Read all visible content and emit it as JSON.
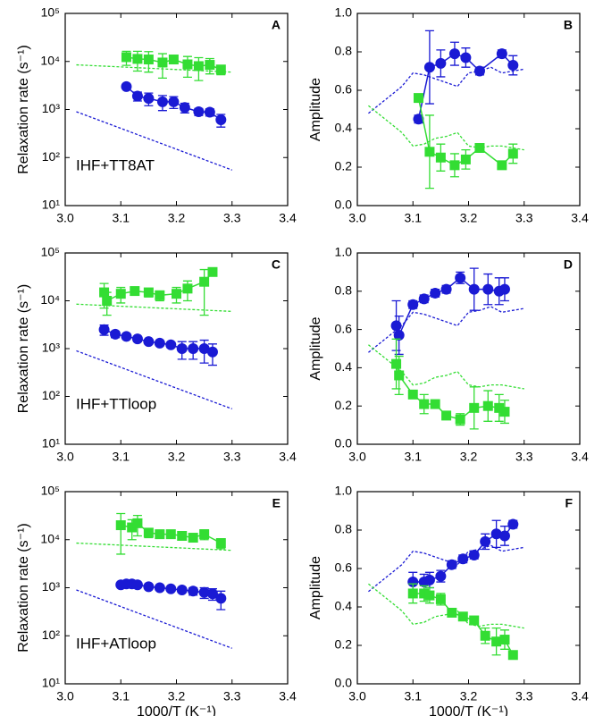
{
  "chart_data": [
    {
      "type": "scatter",
      "panel_label": "A",
      "annotation": "IHF+TT8AT",
      "ylabel": "Relaxation rate (s⁻¹)",
      "log_y": true,
      "xlim": [
        3.0,
        3.4
      ],
      "xticks": [
        {
          "value": 3.0,
          "label": "3.0"
        },
        3.1,
        3.2,
        3.3,
        3.4
      ],
      "ylim": [
        10,
        100000
      ],
      "yticks": [
        {
          "value": 10,
          "label": "10¹"
        },
        {
          "value": 100,
          "label": "10²"
        },
        {
          "value": 1000,
          "label": "10³"
        },
        {
          "value": 10000,
          "label": "10⁴"
        },
        {
          "value": 100000,
          "label": "10⁵"
        }
      ],
      "series": [
        {
          "color": "#1a1ad4",
          "marker": "circle",
          "x": [
            3.11,
            3.13,
            3.15,
            3.175,
            3.195,
            3.215,
            3.24,
            3.26,
            3.28
          ],
          "values": [
            3000,
            1900,
            1700,
            1450,
            1450,
            1100,
            900,
            880,
            610
          ],
          "errors": [
            300,
            400,
            500,
            500,
            400,
            250,
            150,
            150,
            180
          ]
        },
        {
          "color": "#33dd33",
          "marker": "square",
          "x": [
            3.11,
            3.13,
            3.15,
            3.175,
            3.195,
            3.22,
            3.24,
            3.26,
            3.28
          ],
          "values": [
            12300,
            11300,
            11000,
            9500,
            11000,
            8700,
            8000,
            8500,
            6800
          ],
          "errors": [
            4000,
            5000,
            5000,
            5000,
            14000,
            4000,
            4000,
            3000,
            1500
          ]
        },
        {
          "color": "#33dd33",
          "marker": "none",
          "x": [
            3.02,
            3.3
          ],
          "values": [
            8500,
            6000
          ]
        },
        {
          "color": "#1a1ad4",
          "marker": "none",
          "x": [
            3.02,
            3.3
          ],
          "values": [
            900,
            55
          ]
        }
      ]
    },
    {
      "type": "scatter",
      "panel_label": "B",
      "ylabel": "Amplitude",
      "xlim": [
        3.0,
        3.4
      ],
      "xticks": [
        {
          "value": 3.0,
          "label": "3.0"
        },
        3.1,
        3.2,
        3.3,
        3.4
      ],
      "ylim": [
        0,
        1
      ],
      "yticks": [
        {
          "value": 0,
          "label": "0.0"
        },
        0.2,
        0.4,
        0.6,
        0.8,
        {
          "value": 1,
          "label": "1.0"
        }
      ],
      "series": [
        {
          "color": "#1a1ad4",
          "marker": "circle",
          "x": [
            3.11,
            3.13,
            3.15,
            3.175,
            3.195,
            3.22,
            3.26,
            3.28
          ],
          "values": [
            0.45,
            0.72,
            0.74,
            0.79,
            0.77,
            0.7,
            0.79,
            0.73
          ],
          "errors": [
            0.02,
            0.19,
            0.07,
            0.06,
            0.05,
            0.02,
            0.02,
            0.05
          ]
        },
        {
          "color": "#33dd33",
          "marker": "square",
          "x": [
            3.11,
            3.13,
            3.15,
            3.175,
            3.195,
            3.22,
            3.26,
            3.28
          ],
          "values": [
            0.56,
            0.28,
            0.25,
            0.21,
            0.24,
            0.3,
            0.21,
            0.27
          ],
          "errors": [
            0.02,
            0.19,
            0.07,
            0.06,
            0.05,
            0.02,
            0.02,
            0.05
          ]
        },
        {
          "color": "#1a1ad4",
          "marker": "none",
          "x": [
            3.02,
            3.05,
            3.08,
            3.1,
            3.12,
            3.14,
            3.16,
            3.18,
            3.2,
            3.22,
            3.24,
            3.26,
            3.28,
            3.3
          ],
          "values": [
            0.48,
            0.55,
            0.62,
            0.69,
            0.68,
            0.66,
            0.64,
            0.62,
            0.69,
            0.7,
            0.72,
            0.69,
            0.7,
            0.71
          ]
        },
        {
          "color": "#33dd33",
          "marker": "none",
          "x": [
            3.02,
            3.05,
            3.08,
            3.1,
            3.12,
            3.14,
            3.16,
            3.18,
            3.2,
            3.22,
            3.24,
            3.26,
            3.28,
            3.3
          ],
          "values": [
            0.52,
            0.45,
            0.38,
            0.31,
            0.32,
            0.35,
            0.36,
            0.38,
            0.31,
            0.3,
            0.31,
            0.31,
            0.3,
            0.29
          ]
        }
      ]
    },
    {
      "type": "scatter",
      "panel_label": "C",
      "annotation": "IHF+TTloop",
      "ylabel": "Relaxation rate (s⁻¹)",
      "log_y": true,
      "xlim": [
        3.0,
        3.4
      ],
      "xticks": [
        {
          "value": 3.0,
          "label": "3.0"
        },
        3.1,
        3.2,
        3.3,
        3.4
      ],
      "ylim": [
        10,
        100000
      ],
      "yticks": [
        {
          "value": 10,
          "label": "10¹"
        },
        {
          "value": 100,
          "label": "10²"
        },
        {
          "value": 1000,
          "label": "10³"
        },
        {
          "value": 10000,
          "label": "10⁴"
        },
        {
          "value": 100000,
          "label": "10⁵"
        }
      ],
      "series": [
        {
          "color": "#1a1ad4",
          "marker": "circle",
          "x": [
            3.07,
            3.09,
            3.11,
            3.13,
            3.15,
            3.17,
            3.19,
            3.21,
            3.23,
            3.25,
            3.265
          ],
          "values": [
            2500,
            2000,
            1800,
            1600,
            1400,
            1300,
            1200,
            1000,
            1000,
            1000,
            850
          ],
          "errors": [
            600,
            300,
            200,
            200,
            150,
            150,
            150,
            400,
            400,
            500,
            400
          ]
        },
        {
          "color": "#33dd33",
          "marker": "square",
          "x": [
            3.07,
            3.075,
            3.1,
            3.125,
            3.15,
            3.17,
            3.2,
            3.22,
            3.25,
            3.265
          ],
          "values": [
            15000,
            10000,
            14000,
            16000,
            15000,
            13000,
            14000,
            18000,
            25000,
            40000
          ],
          "errors": [
            8000,
            5000,
            5000,
            3000,
            3000,
            3000,
            5000,
            8000,
            20000,
            40000
          ]
        },
        {
          "color": "#33dd33",
          "marker": "none",
          "x": [
            3.02,
            3.3
          ],
          "values": [
            8500,
            6000
          ]
        },
        {
          "color": "#1a1ad4",
          "marker": "none",
          "x": [
            3.02,
            3.3
          ],
          "values": [
            900,
            55
          ]
        }
      ]
    },
    {
      "type": "scatter",
      "panel_label": "D",
      "ylabel": "Amplitude",
      "xlim": [
        3.0,
        3.4
      ],
      "xticks": [
        {
          "value": 3.0,
          "label": "3.0"
        },
        3.1,
        3.2,
        3.3,
        3.4
      ],
      "ylim": [
        0,
        1
      ],
      "yticks": [
        {
          "value": 0,
          "label": "0.0"
        },
        0.2,
        0.4,
        0.6,
        0.8,
        {
          "value": 1,
          "label": "1.0"
        }
      ],
      "series": [
        {
          "color": "#1a1ad4",
          "marker": "circle",
          "x": [
            3.07,
            3.075,
            3.1,
            3.12,
            3.14,
            3.16,
            3.185,
            3.21,
            3.235,
            3.255,
            3.265
          ],
          "values": [
            0.62,
            0.57,
            0.73,
            0.76,
            0.79,
            0.81,
            0.87,
            0.81,
            0.81,
            0.8,
            0.81
          ],
          "errors": [
            0.13,
            0.1,
            0.02,
            0.02,
            0.02,
            0.02,
            0.03,
            0.11,
            0.08,
            0.07,
            0.06
          ]
        },
        {
          "color": "#33dd33",
          "marker": "square",
          "x": [
            3.07,
            3.075,
            3.1,
            3.12,
            3.14,
            3.16,
            3.185,
            3.21,
            3.235,
            3.255,
            3.265
          ],
          "values": [
            0.42,
            0.36,
            0.26,
            0.21,
            0.21,
            0.15,
            0.13,
            0.19,
            0.2,
            0.19,
            0.17
          ],
          "errors": [
            0.13,
            0.1,
            0.02,
            0.05,
            0.02,
            0.02,
            0.03,
            0.11,
            0.08,
            0.07,
            0.06
          ]
        },
        {
          "color": "#1a1ad4",
          "marker": "none",
          "x": [
            3.02,
            3.05,
            3.08,
            3.1,
            3.12,
            3.14,
            3.16,
            3.18,
            3.2,
            3.22,
            3.24,
            3.26,
            3.28,
            3.3
          ],
          "values": [
            0.48,
            0.55,
            0.62,
            0.69,
            0.68,
            0.66,
            0.64,
            0.62,
            0.69,
            0.7,
            0.72,
            0.69,
            0.7,
            0.71
          ]
        },
        {
          "color": "#33dd33",
          "marker": "none",
          "x": [
            3.02,
            3.05,
            3.08,
            3.1,
            3.12,
            3.14,
            3.16,
            3.18,
            3.2,
            3.22,
            3.24,
            3.26,
            3.28,
            3.3
          ],
          "values": [
            0.52,
            0.45,
            0.38,
            0.31,
            0.32,
            0.35,
            0.36,
            0.38,
            0.31,
            0.3,
            0.31,
            0.31,
            0.3,
            0.29
          ]
        }
      ]
    },
    {
      "type": "scatter",
      "panel_label": "E",
      "annotation": "IHF+ATloop",
      "ylabel": "Relaxation rate (s⁻¹)",
      "xlabel": "1000/T (K⁻¹)",
      "log_y": true,
      "xlim": [
        3.0,
        3.4
      ],
      "xticks": [
        {
          "value": 3.0,
          "label": "3.0"
        },
        3.1,
        3.2,
        3.3,
        3.4
      ],
      "ylim": [
        10,
        100000
      ],
      "yticks": [
        {
          "value": 10,
          "label": "10¹"
        },
        {
          "value": 100,
          "label": "10²"
        },
        {
          "value": 1000,
          "label": "10³"
        },
        {
          "value": 10000,
          "label": "10⁴"
        },
        {
          "value": 100000,
          "label": "10⁵"
        }
      ],
      "series": [
        {
          "color": "#1a1ad4",
          "marker": "circle",
          "x": [
            3.1,
            3.11,
            3.12,
            3.13,
            3.15,
            3.17,
            3.19,
            3.21,
            3.23,
            3.25,
            3.265,
            3.28
          ],
          "values": [
            1150,
            1200,
            1200,
            1150,
            1050,
            1000,
            950,
            900,
            850,
            800,
            750,
            600
          ],
          "errors": [
            100,
            100,
            100,
            100,
            100,
            100,
            100,
            100,
            150,
            200,
            200,
            250
          ]
        },
        {
          "color": "#33dd33",
          "marker": "square",
          "x": [
            3.1,
            3.12,
            3.13,
            3.15,
            3.17,
            3.19,
            3.21,
            3.23,
            3.25,
            3.28
          ],
          "values": [
            20000,
            18000,
            22000,
            14000,
            13000,
            13000,
            12000,
            11000,
            13000,
            8500
          ],
          "errors": [
            15000,
            8000,
            10000,
            3000,
            2000,
            2000,
            2000,
            2000,
            3000,
            2000
          ]
        },
        {
          "color": "#33dd33",
          "marker": "none",
          "x": [
            3.02,
            3.3
          ],
          "values": [
            8500,
            6000
          ]
        },
        {
          "color": "#1a1ad4",
          "marker": "none",
          "x": [
            3.02,
            3.3
          ],
          "values": [
            900,
            55
          ]
        }
      ]
    },
    {
      "type": "scatter",
      "panel_label": "F",
      "ylabel": "Amplitude",
      "xlabel": "1000/T (K⁻¹)",
      "xlim": [
        3.0,
        3.4
      ],
      "xticks": [
        {
          "value": 3.0,
          "label": "3.0"
        },
        3.1,
        3.2,
        3.3,
        3.4
      ],
      "ylim": [
        0,
        1
      ],
      "yticks": [
        {
          "value": 0,
          "label": "0.0"
        },
        0.2,
        0.4,
        0.6,
        0.8,
        {
          "value": 1,
          "label": "1.0"
        }
      ],
      "series": [
        {
          "color": "#1a1ad4",
          "marker": "circle",
          "x": [
            3.1,
            3.12,
            3.13,
            3.15,
            3.17,
            3.19,
            3.21,
            3.23,
            3.25,
            3.265,
            3.28
          ],
          "values": [
            0.53,
            0.53,
            0.54,
            0.56,
            0.62,
            0.65,
            0.67,
            0.74,
            0.78,
            0.77,
            0.83
          ],
          "errors": [
            0.05,
            0.04,
            0.04,
            0.03,
            0.02,
            0.02,
            0.02,
            0.04,
            0.07,
            0.05,
            0.02
          ]
        },
        {
          "color": "#33dd33",
          "marker": "square",
          "x": [
            3.1,
            3.12,
            3.13,
            3.15,
            3.17,
            3.19,
            3.21,
            3.23,
            3.25,
            3.265,
            3.28
          ],
          "values": [
            0.47,
            0.47,
            0.46,
            0.44,
            0.37,
            0.35,
            0.33,
            0.25,
            0.22,
            0.23,
            0.15
          ],
          "errors": [
            0.05,
            0.04,
            0.04,
            0.03,
            0.02,
            0.02,
            0.02,
            0.04,
            0.07,
            0.05,
            0.02
          ]
        },
        {
          "color": "#1a1ad4",
          "marker": "none",
          "x": [
            3.02,
            3.05,
            3.08,
            3.1,
            3.12,
            3.14,
            3.16,
            3.18,
            3.2,
            3.22,
            3.24,
            3.26,
            3.28,
            3.3
          ],
          "values": [
            0.48,
            0.55,
            0.62,
            0.69,
            0.68,
            0.66,
            0.64,
            0.62,
            0.69,
            0.7,
            0.72,
            0.69,
            0.7,
            0.71
          ]
        },
        {
          "color": "#33dd33",
          "marker": "none",
          "x": [
            3.02,
            3.05,
            3.08,
            3.1,
            3.12,
            3.14,
            3.16,
            3.18,
            3.2,
            3.22,
            3.24,
            3.26,
            3.28,
            3.3
          ],
          "values": [
            0.52,
            0.45,
            0.38,
            0.31,
            0.32,
            0.35,
            0.36,
            0.38,
            0.31,
            0.3,
            0.31,
            0.31,
            0.3,
            0.29
          ]
        }
      ]
    }
  ]
}
